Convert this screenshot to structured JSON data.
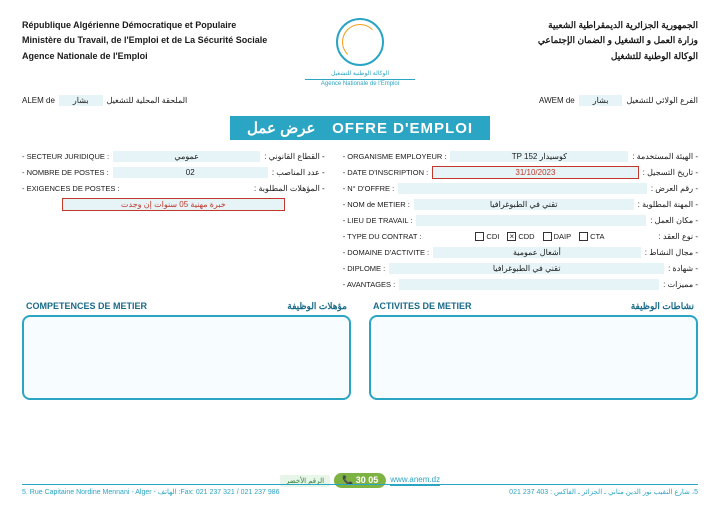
{
  "header": {
    "fr_line1": "République Algérienne Démocratique et Populaire",
    "fr_line2": "Ministère du Travail, de l'Emploi et de La Sécurité Sociale",
    "fr_line3": "Agence Nationale de l'Emploi",
    "ar_line1": "الجمهورية الجزائرية الديمقراطية الشعبية",
    "ar_line2": "وزارة العمل و التشغيل و الضمان الإجتماعي",
    "ar_line3": "الوكالة الوطنية للتشغيل",
    "logo_sub1": "الوكالة الوطنية للتشغيل",
    "logo_sub2": "Agence Nationale de l'Emploi"
  },
  "subheader": {
    "alem_fr": "ALEM de",
    "alem_val": "بشار",
    "alem_ar": "الملحقة المحلية للتشغيل",
    "awem_fr": "AWEM de",
    "awem_val": "بشار",
    "awem_ar": "الفرع الولائي للتشغيل"
  },
  "title": {
    "fr": "OFFRE D'EMPLOI",
    "ar": "عرض عمل"
  },
  "left": {
    "secteur_fr": "- SECTEUR JURIDIQUE :",
    "secteur_val": "عمومي",
    "secteur_ar": "- القطاع القانوني :",
    "postes_fr": "- NOMBRE DE POSTES :",
    "postes_val": "02",
    "postes_ar": "- عدد المناصب :",
    "exig_fr": "- EXIGENCES DE POSTES :",
    "exig_ar": "- المؤهلات المطلوبة :",
    "exig_val": "خبرة مهنية 05 سنوات إن وجدت"
  },
  "right": {
    "org_fr": "- ORGANISME EMPLOYEUR :",
    "org_val": "TP 152 كوسيدار",
    "org_ar": "- الهيئة المستخدمة :",
    "date_fr": "- DATE D'INSCRIPTION :",
    "date_val": "31/10/2023",
    "date_ar": "- تاريخ التسجيل :",
    "noffre_fr": "- N° D'OFFRE :",
    "noffre_ar": "- رقم العرض :",
    "metier_fr": "- NOM de METIER :",
    "metier_val": "تقني في الطبوغرافيا",
    "metier_ar": "- المهنة المطلوبة :",
    "lieu_fr": "- LIEU DE TRAVAIL :",
    "lieu_ar": "- مكان العمل :",
    "contrat_fr": "- TYPE DU CONTRAT :",
    "contrat_ar": "- نوع العقد :",
    "cdi": "CDI",
    "cdd": "CDD",
    "daip": "DAIP",
    "cta": "CTA",
    "cdd_checked": "×",
    "domaine_fr": "- DOMAINE D'ACTIVITE :",
    "domaine_val": "أشغال عمومية",
    "domaine_ar": "- مجال النشاط :",
    "diplome_fr": "- DIPLOME :",
    "diplome_val": "تقني في الطبوغرافيا",
    "diplome_ar": "- شهادة :",
    "avant_fr": "- AVANTAGES :",
    "avant_ar": "- مميزات :"
  },
  "boxes": {
    "comp_fr": "COMPETENCES DE METIER",
    "comp_ar": "مؤهلات الوظيفة",
    "act_fr": "ACTIVITES DE METIER",
    "act_ar": "نشاطات الوظيفة"
  },
  "footer": {
    "left": "5. Rue Capitaine Nordine Mennani - Alger - الهاتف :Fax: 021 237 321 / 021 237 986",
    "right": "5، شارع النقيب نور الدين مناني ـ الجزائر ـ الفاكس : 403 237 021",
    "site": "www.anem.dz",
    "green_num": "30 05",
    "green_lbl": "الرقم الأخضر"
  },
  "colors": {
    "primary": "#2ba5c4",
    "field_bg": "#e6f4f8",
    "red": "#c0392b",
    "green": "#7cb342"
  }
}
